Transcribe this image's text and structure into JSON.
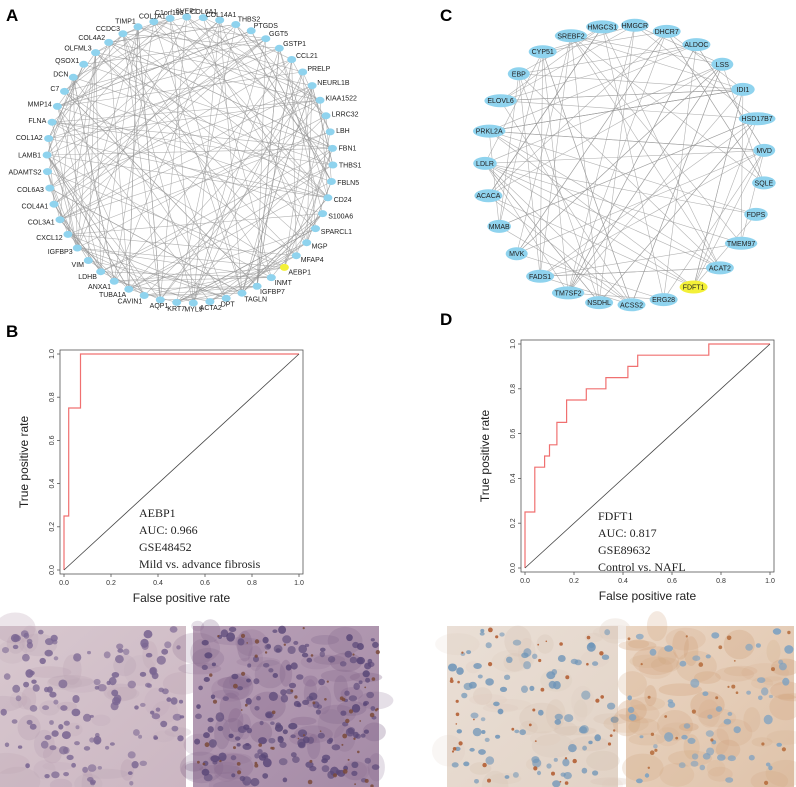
{
  "panels": {
    "a": {
      "label": "A"
    },
    "b": {
      "label": "B"
    },
    "c": {
      "label": "C"
    },
    "d": {
      "label": "D"
    }
  },
  "networks": [
    {
      "panel": "A",
      "nodes": [
        "C1orf198",
        "SVEP1",
        "COL6A1",
        "COL14A1",
        "THBS2",
        "PTGDS",
        "GGT5",
        "GSTP1",
        "CCL21",
        "PRELP",
        "NEURL1B",
        "KIAA1522",
        "LRRC32",
        "LBH",
        "FBN1",
        "THBS1",
        "FBLN5",
        "CD24",
        "S100A6",
        "SPARCL1",
        "MGP",
        "MFAP4",
        "AEBP1",
        "INMT",
        "IGFBP7",
        "TAGLN",
        "DPT",
        "ACTA2",
        "MYL9",
        "KRT7",
        "AQP1",
        "CAVIN1",
        "TUBA1A",
        "ANXA1",
        "LDHB",
        "VIM",
        "IGFBP3",
        "CXCL12",
        "COL3A1",
        "COL4A1",
        "COL6A3",
        "ADAMTS2",
        "LAMB1",
        "COL1A2",
        "FLNA",
        "MMP14",
        "C7",
        "DCN",
        "QSOX1",
        "OLFML3",
        "COL4A2",
        "CCDC3",
        "TIMP1",
        "COL1A1"
      ],
      "highlighted": [
        "AEBP1"
      ]
    },
    {
      "panel": "C",
      "nodes": [
        "HMGCR",
        "DHCR7",
        "ALDOC",
        "LSS",
        "IDI1",
        "HSD17B7",
        "MVD",
        "SQLE",
        "FDPS",
        "TMEM97",
        "ACAT2",
        "FDFT1",
        "ERG28",
        "ACSS2",
        "NSDHL",
        "TM7SF2",
        "FADS1",
        "MVK",
        "MMAB",
        "ACACA",
        "LDLR",
        "PRKL2A",
        "ELOVL6",
        "EBP",
        "CYP51",
        "SREBF2",
        "HMGCS1"
      ],
      "highlighted": [
        "FDFT1"
      ]
    }
  ],
  "colors": {
    "node_fill": "#8fd3ee",
    "node_highlight": "#f3f038",
    "edge": "#9a9a9a",
    "roc_curve": "#f07070",
    "diagonal": "#444444"
  },
  "chart_data": [
    {
      "panel": "B",
      "type": "line",
      "title": "",
      "xlabel": "False positive rate",
      "ylabel": "True positive rate",
      "xlim": [
        0,
        1
      ],
      "ylim": [
        0,
        1
      ],
      "xticks": [
        "0.0",
        "0.2",
        "0.4",
        "0.6",
        "0.8",
        "1.0"
      ],
      "yticks": [
        "0.0",
        "0.2",
        "0.4",
        "0.6",
        "0.8",
        "1.0"
      ],
      "series": [
        {
          "name": "ROC",
          "x": [
            0,
            0,
            0.02,
            0.02,
            0.07,
            0.07,
            1
          ],
          "y": [
            0,
            0.25,
            0.25,
            0.75,
            0.75,
            1,
            1
          ]
        },
        {
          "name": "chance",
          "x": [
            0,
            1
          ],
          "y": [
            0,
            1
          ]
        }
      ],
      "legend": [
        "AEBP1",
        "AUC: 0.966",
        "GSE48452",
        "Mild vs. advance fibrosis"
      ]
    },
    {
      "panel": "D",
      "type": "line",
      "title": "",
      "xlabel": "False positive rate",
      "ylabel": "True positive rate",
      "xlim": [
        0,
        1
      ],
      "ylim": [
        0,
        1
      ],
      "xticks": [
        "0.0",
        "0.2",
        "0.4",
        "0.6",
        "0.8",
        "1.0"
      ],
      "yticks": [
        "0.0",
        "0.2",
        "0.4",
        "0.6",
        "0.8",
        "1.0"
      ],
      "series": [
        {
          "name": "ROC",
          "x": [
            0,
            0,
            0.04,
            0.04,
            0.08,
            0.08,
            0.1,
            0.1,
            0.13,
            0.13,
            0.17,
            0.17,
            0.25,
            0.25,
            0.29,
            0.29,
            0.33,
            0.33,
            0.42,
            0.42,
            0.46,
            0.46,
            0.5,
            0.5,
            0.75,
            0.75,
            1
          ],
          "y": [
            0,
            0.25,
            0.25,
            0.45,
            0.45,
            0.5,
            0.5,
            0.55,
            0.55,
            0.65,
            0.65,
            0.75,
            0.75,
            0.8,
            0.8,
            0.8,
            0.8,
            0.85,
            0.85,
            0.9,
            0.9,
            0.95,
            0.95,
            0.95,
            0.95,
            1,
            1
          ]
        },
        {
          "name": "chance",
          "x": [
            0,
            1
          ],
          "y": [
            0,
            1
          ]
        }
      ],
      "legend": [
        "FDFT1",
        "AUC: 0.817",
        "GSE89632",
        "Control vs. NAFL"
      ]
    }
  ]
}
